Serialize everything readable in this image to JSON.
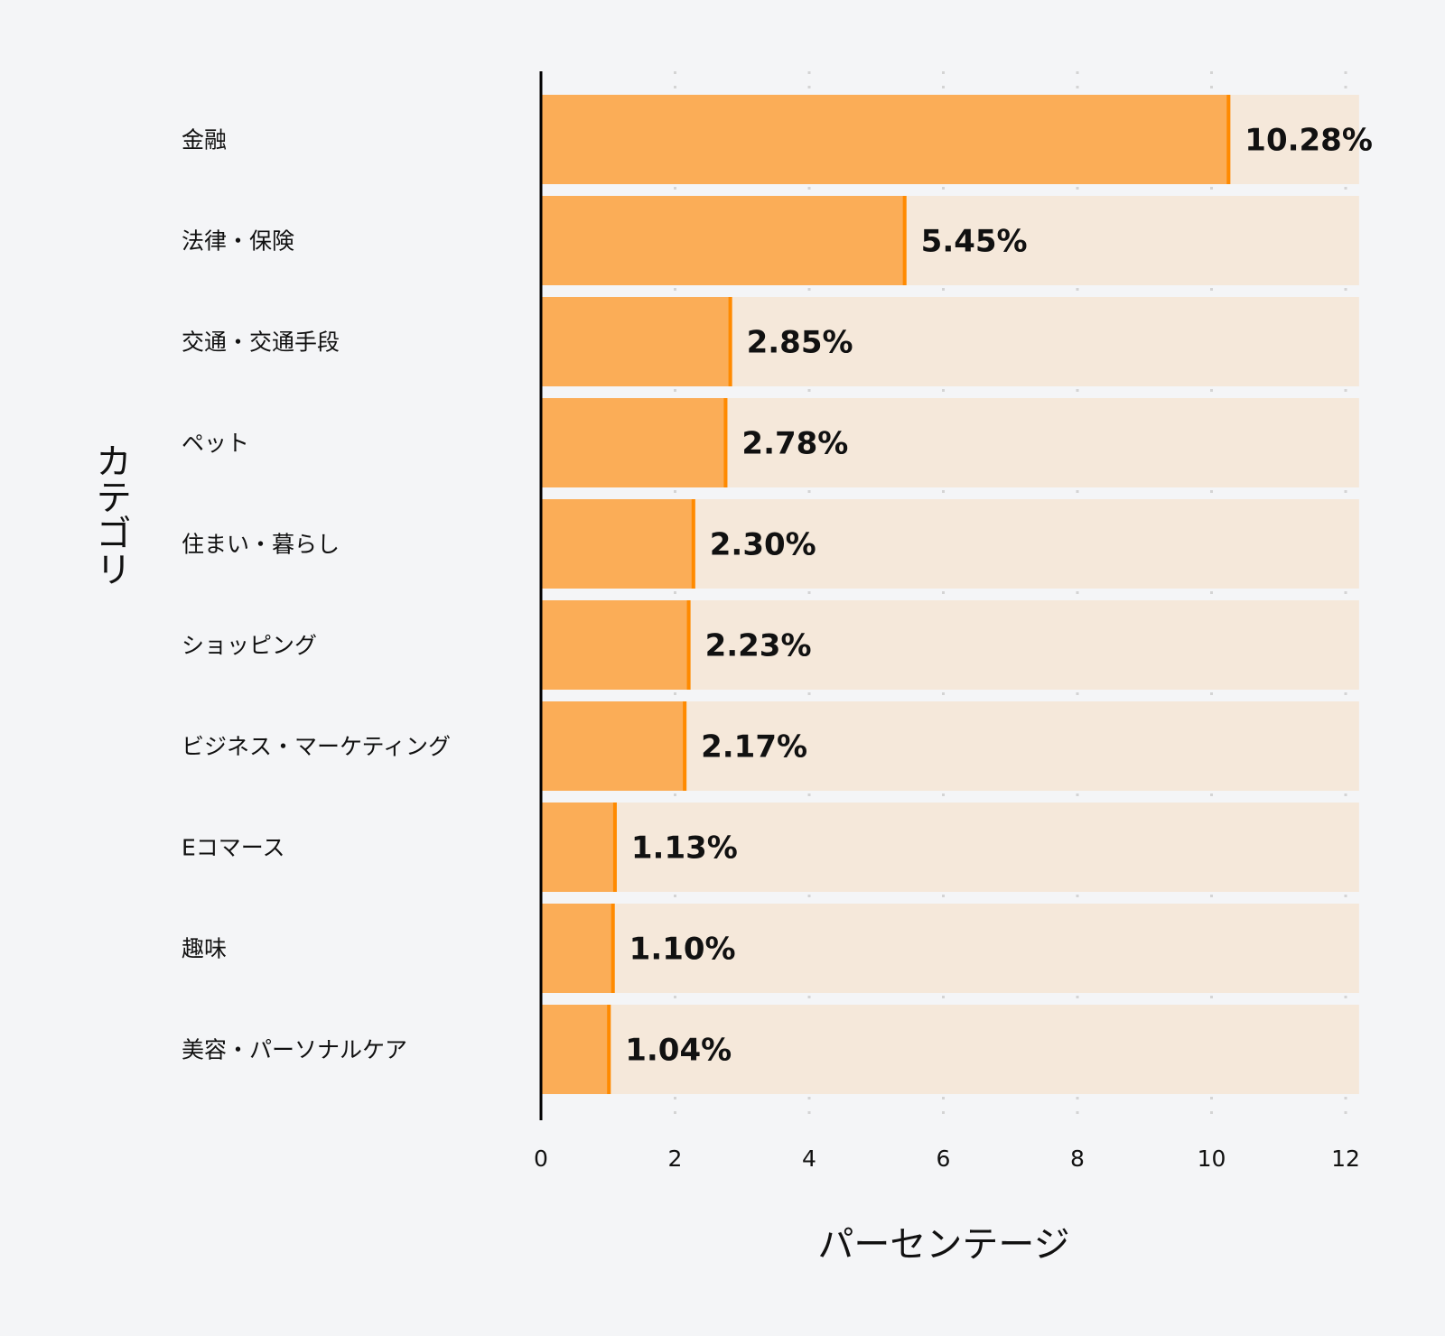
{
  "chart_data": {
    "type": "bar",
    "orientation": "horizontal",
    "xlabel": "パーセンテージ",
    "ylabel": "カテゴリ",
    "xlim": [
      0,
      12.2
    ],
    "xticks": [
      0,
      2,
      4,
      6,
      8,
      10,
      12
    ],
    "grid": "vertical dotted",
    "categories": [
      "金融",
      "法律・保険",
      "交通・交通手段",
      "ペット",
      "住まい・暮らし",
      "ショッピング",
      "ビジネス・マーケティング",
      "Eコマース",
      "趣味",
      "美容・パーソナルケア"
    ],
    "values": [
      10.28,
      5.45,
      2.85,
      2.78,
      2.3,
      2.23,
      2.17,
      1.13,
      1.1,
      1.04
    ],
    "value_labels": [
      "10.28%",
      "5.45%",
      "2.85%",
      "2.78%",
      "2.30%",
      "2.23%",
      "2.17%",
      "1.13%",
      "1.10%",
      "1.04%"
    ],
    "colors": {
      "bar": "#fbad57",
      "bar_edge": "#ff8a00",
      "track": "#f5e8da",
      "grid": "#d4d4d4"
    }
  }
}
